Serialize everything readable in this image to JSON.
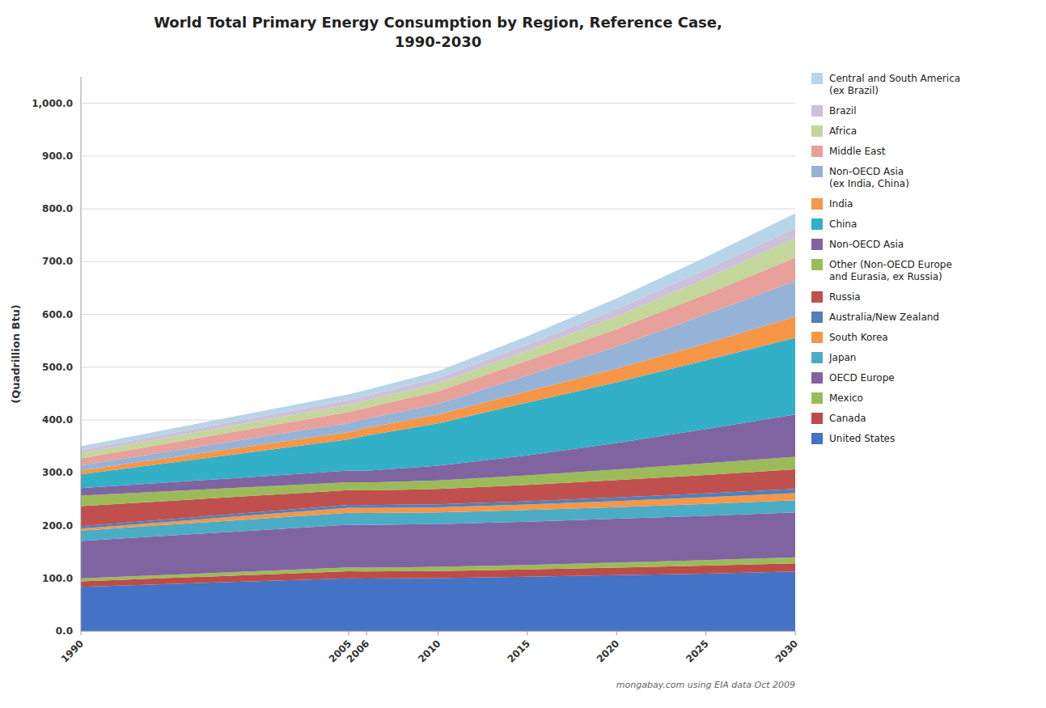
{
  "chart_data": {
    "type": "area",
    "stacked": true,
    "title": "World Total Primary Energy Consumption by Region, Reference Case,\n1990-2030",
    "ylabel": "(Quadrillion Btu)",
    "annotation": "mongabay.com using EIA data Oct 2009",
    "x": [
      1990,
      2005,
      2006,
      2010,
      2015,
      2020,
      2025,
      2030
    ],
    "xlim": [
      1990,
      2030
    ],
    "xticks": [
      1990,
      2005,
      2006,
      2010,
      2015,
      2020,
      2025,
      2030
    ],
    "ylim": [
      0,
      1050
    ],
    "yticks": [
      {
        "value": 0,
        "label": "0.0"
      },
      {
        "value": 100,
        "label": "100.0"
      },
      {
        "value": 200,
        "label": "200.0"
      },
      {
        "value": 300,
        "label": "300.0"
      },
      {
        "value": 400,
        "label": "400.0"
      },
      {
        "value": 500,
        "label": "500.0"
      },
      {
        "value": 600,
        "label": "600.0"
      },
      {
        "value": 700,
        "label": "700.0"
      },
      {
        "value": 800,
        "label": "800.0"
      },
      {
        "value": 900,
        "label": "900.0"
      },
      {
        "value": 1000,
        "label": "1,000.0"
      }
    ],
    "grid": true,
    "legend": "right",
    "series": [
      {
        "name": "United States",
        "color": "#4472C4",
        "values": [
          84.0,
          100.2,
          99.7,
          100.5,
          103.0,
          106.0,
          109.0,
          113.0
        ]
      },
      {
        "name": "Canada",
        "color": "#BE4B48",
        "values": [
          10.2,
          13.3,
          13.3,
          13.5,
          14.0,
          14.5,
          15.0,
          15.5
        ]
      },
      {
        "name": "Mexico",
        "color": "#9BBB59",
        "values": [
          5.8,
          7.2,
          7.2,
          7.8,
          8.5,
          9.5,
          10.5,
          11.5
        ]
      },
      {
        "name": "OECD Europe",
        "color": "#8064A2",
        "values": [
          71.0,
          81.0,
          81.0,
          81.0,
          82.0,
          83.0,
          84.0,
          85.0
        ]
      },
      {
        "name": "Japan",
        "color": "#4BACC6",
        "values": [
          19.5,
          22.5,
          22.5,
          22.0,
          22.0,
          22.0,
          22.5,
          23.0
        ]
      },
      {
        "name": "South Korea",
        "color": "#F79646",
        "values": [
          3.8,
          9.5,
          9.5,
          9.8,
          10.5,
          11.5,
          12.5,
          13.5
        ]
      },
      {
        "name": "Australia/New Zealand",
        "color": "#4F81BD",
        "values": [
          4.5,
          5.5,
          5.5,
          5.8,
          6.2,
          6.8,
          7.5,
          8.0
        ]
      },
      {
        "name": "Russia",
        "color": "#C0504D",
        "values": [
          38.0,
          28.0,
          28.0,
          29.0,
          31.0,
          33.0,
          35.0,
          37.0
        ]
      },
      {
        "name": "Other (Non-OECD Europe\nand Eurasia, ex Russia)",
        "color": "#9BBB59",
        "values": [
          20.0,
          15.0,
          15.0,
          16.0,
          18.0,
          20.0,
          22.0,
          24.0
        ]
      },
      {
        "name": "Non-OECD Asia",
        "color": "#8064A2",
        "values": [
          14.0,
          22.0,
          22.0,
          28.0,
          38.0,
          50.0,
          65.0,
          80.0
        ]
      },
      {
        "name": "China",
        "color": "#31B0C7",
        "values": [
          26.0,
          59.0,
          67.0,
          80.0,
          100.0,
          115.0,
          130.0,
          145.0
        ]
      },
      {
        "name": "India",
        "color": "#F79646",
        "values": [
          7.5,
          14.0,
          14.5,
          17.0,
          21.0,
          26.0,
          32.0,
          40.0
        ]
      },
      {
        "name": "Non-OECD Asia\n(ex India, China)",
        "color": "#95B3D7",
        "values": [
          10.0,
          17.0,
          17.0,
          20.0,
          30.0,
          42.0,
          55.0,
          68.0
        ]
      },
      {
        "name": "Middle East",
        "color": "#E8A09A",
        "values": [
          13.0,
          21.0,
          21.0,
          24.0,
          28.0,
          33.0,
          38.0,
          44.0
        ]
      },
      {
        "name": "Africa",
        "color": "#C3D69B",
        "values": [
          10.0,
          14.0,
          14.0,
          15.5,
          19.0,
          24.0,
          30.0,
          37.0
        ]
      },
      {
        "name": "Brazil",
        "color": "#CCC0DA",
        "values": [
          5.5,
          8.5,
          8.5,
          9.5,
          11.5,
          14.0,
          16.5,
          19.0
        ]
      },
      {
        "name": "Central and South America\n(ex Brazil)",
        "color": "#B8D4E8",
        "values": [
          7.5,
          11.0,
          11.0,
          13.0,
          16.0,
          20.0,
          24.0,
          28.0
        ]
      }
    ]
  }
}
